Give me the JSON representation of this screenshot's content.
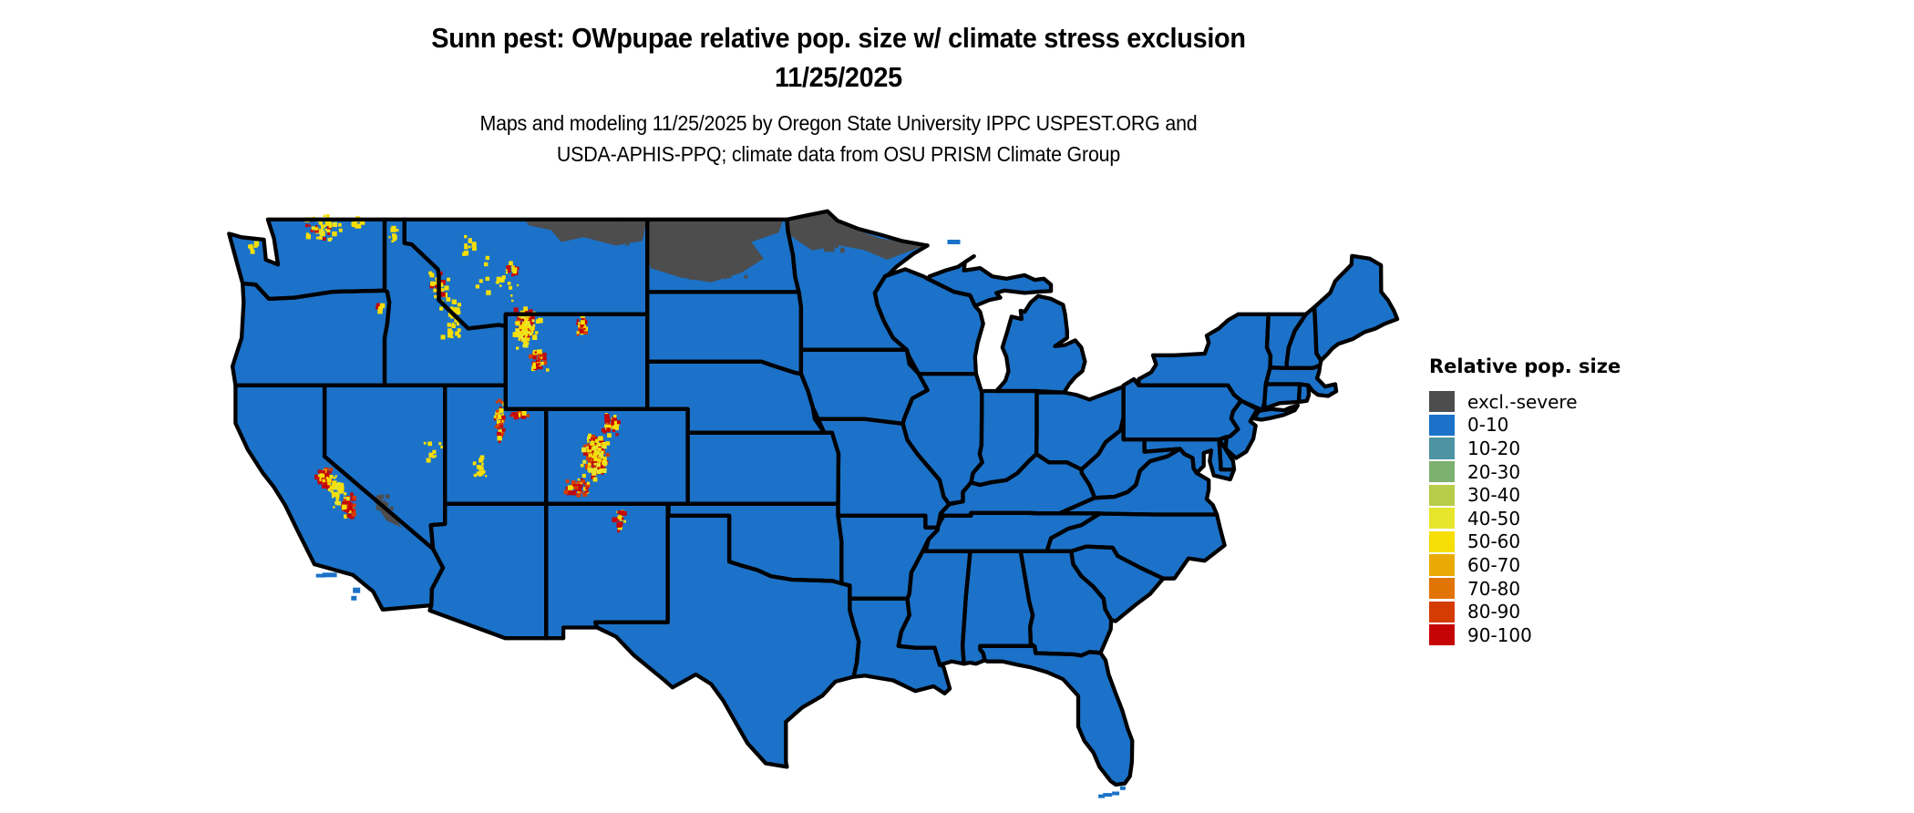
{
  "title": {
    "line1": "Sunn pest: OWpupae relative pop. size w/ climate stress exclusion",
    "line2": "11/25/2025"
  },
  "subtitle": {
    "line1": "Maps and modeling 11/25/2025 by Oregon State University IPPC USPEST.ORG and",
    "line2": "USDA-APHIS-PPQ; climate data from OSU PRISM Climate Group"
  },
  "legend": {
    "title": "Relative pop. size",
    "items": [
      {
        "label": "excl.-severe",
        "color": "#4D4D4D"
      },
      {
        "label": "0-10",
        "color": "#1B72C8"
      },
      {
        "label": "10-20",
        "color": "#4D93A1"
      },
      {
        "label": "20-30",
        "color": "#7BB06E"
      },
      {
        "label": "30-40",
        "color": "#B7CD49"
      },
      {
        "label": "40-50",
        "color": "#E7E52D"
      },
      {
        "label": "50-60",
        "color": "#F6DE06"
      },
      {
        "label": "60-70",
        "color": "#EAAA06"
      },
      {
        "label": "70-80",
        "color": "#E27405"
      },
      {
        "label": "80-90",
        "color": "#D53C04"
      },
      {
        "label": "90-100",
        "color": "#C50505"
      }
    ]
  },
  "map": {
    "kind": "Continental US raster choropleth, lower 48 states with black state borders",
    "base_color": "#1B72C8",
    "exclusion_color": "#4D4D4D",
    "border_color": "#000000",
    "excluded_regions_visible": [
      "northern Montana strip",
      "northern and central North Dakota",
      "northern Minnesota / arrowhead"
    ],
    "hotspot_regions_visible": [
      "north Cascades WA",
      "Idaho-Montana Rockies",
      "Yellowstone-Absaroka-Wind River WY",
      "Bighorn Mtns WY",
      "Wasatch-Uinta UT",
      "Colorado Rockies",
      "Sangre de Cristo NM",
      "Sierra Nevada CA"
    ]
  }
}
